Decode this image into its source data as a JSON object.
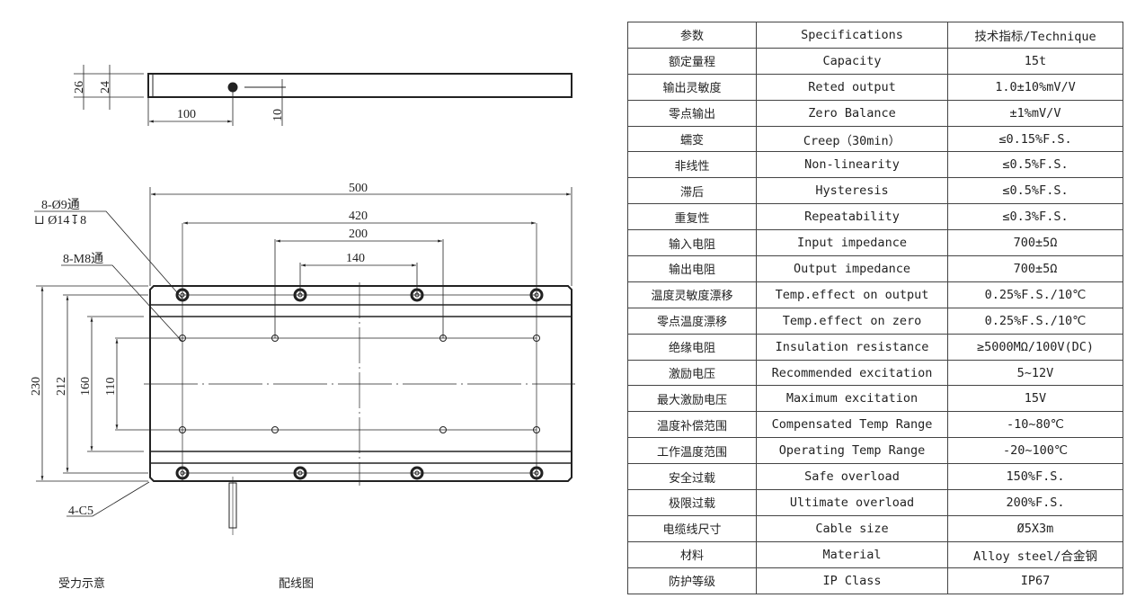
{
  "drawing": {
    "side_view": {
      "dim_height_outer": "26",
      "dim_height_inner": "24",
      "dim_cable_offset": "100",
      "dim_cable_height": "10"
    },
    "plan_view": {
      "dim_length": "500",
      "dim_outer_hole_span": "420",
      "dim_inner_hole_span": "200",
      "dim_mid_span": "140",
      "dim_width": "230",
      "dim_outer_row_span": "212",
      "dim_groove_span": "160",
      "dim_inner_row_span": "110",
      "note_through_holes": "8-Ø9通",
      "note_counterbore": "⊔ Ø14↧8",
      "note_threaded_holes": "8-M8通",
      "note_chamfer": "4-C5"
    },
    "caption_force": "受力示意",
    "caption_wiring": "配线图"
  },
  "spec_table": {
    "headers": [
      "参数",
      "Specifications",
      "技术指标/Technique"
    ],
    "rows": [
      [
        "额定量程",
        "Capacity",
        "15t"
      ],
      [
        "输出灵敏度",
        "Reted output",
        "1.0±10%mV/V"
      ],
      [
        "零点输出",
        "Zero Balance",
        "±1%mV/V"
      ],
      [
        "蠕变",
        "Creep（30min）",
        "≤0.15%F.S."
      ],
      [
        "非线性",
        "Non-linearity",
        "≤0.5%F.S."
      ],
      [
        "滞后",
        "Hysteresis",
        "≤0.5%F.S."
      ],
      [
        "重复性",
        "Repeatability",
        "≤0.3%F.S."
      ],
      [
        "输入电阻",
        "Input impedance",
        "700±5Ω"
      ],
      [
        "输出电阻",
        "Output impedance",
        "700±5Ω"
      ],
      [
        "温度灵敏度漂移",
        "Temp.effect on output",
        "0.25%F.S./10℃"
      ],
      [
        "零点温度漂移",
        "Temp.effect on zero",
        "0.25%F.S./10℃"
      ],
      [
        "绝缘电阻",
        "Insulation resistance",
        "≥5000MΩ/100V(DC)"
      ],
      [
        "激励电压",
        "Recommended excitation",
        "5~12V"
      ],
      [
        "最大激励电压",
        "Maximum excitation",
        "15V"
      ],
      [
        "温度补偿范围",
        "Compensated Temp Range",
        "-10~80℃"
      ],
      [
        "工作温度范围",
        "Operating Temp Range",
        "-20~100℃"
      ],
      [
        "安全过载",
        "Safe overload",
        "150%F.S."
      ],
      [
        "极限过载",
        "Ultimate overload",
        "200%F.S."
      ],
      [
        "电缆线尺寸",
        "Cable size",
        "Ø5X3m"
      ],
      [
        "材料",
        "Material",
        "Alloy steel/合金钢"
      ],
      [
        "防护等级",
        "IP Class",
        "IP67"
      ]
    ]
  }
}
